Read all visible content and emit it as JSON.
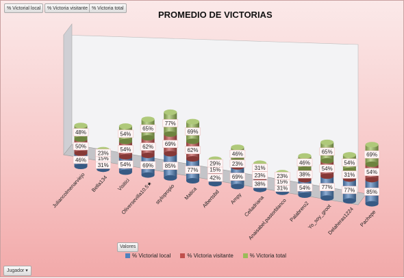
{
  "field_buttons": [
    "% Victorial local",
    "% Victoria visitante",
    "% Victoria total"
  ],
  "values_button": "Valores",
  "row_filter_button": "Jugador",
  "chart_data": {
    "type": "bar",
    "stacked": true,
    "three_d": true,
    "title": "PROMEDIO DE VICTORIAS",
    "categories": [
      "Juliancolmenarviejo",
      "Bella134",
      "Visitici",
      "Oliversevilla10.5★",
      "stylopropio",
      "Matica",
      "Albertsbd",
      "Ampy",
      "Celiadriana",
      "Anaisabel,pastorblanco",
      "Palabrero2",
      "Yo_soy_groot",
      "Delaheras1224",
      "Pachepe"
    ],
    "series": [
      {
        "name": "% Victorial local",
        "color": "#4f81bd",
        "values": [
          46,
          31,
          54,
          69,
          85,
          77,
          42,
          69,
          38,
          31,
          54,
          77,
          77,
          85
        ]
      },
      {
        "name": "% Victoria visitante",
        "color": "#c0504d",
        "values": [
          50,
          15,
          54,
          62,
          69,
          62,
          15,
          23,
          23,
          15,
          38,
          54,
          31,
          54
        ]
      },
      {
        "name": "% Victoria total",
        "color": "#9bbb59",
        "values": [
          48,
          23,
          54,
          65,
          77,
          69,
          29,
          46,
          31,
          23,
          46,
          65,
          54,
          69
        ]
      }
    ],
    "value_suffix": "%",
    "legend_position": "bottom",
    "grid": false
  }
}
